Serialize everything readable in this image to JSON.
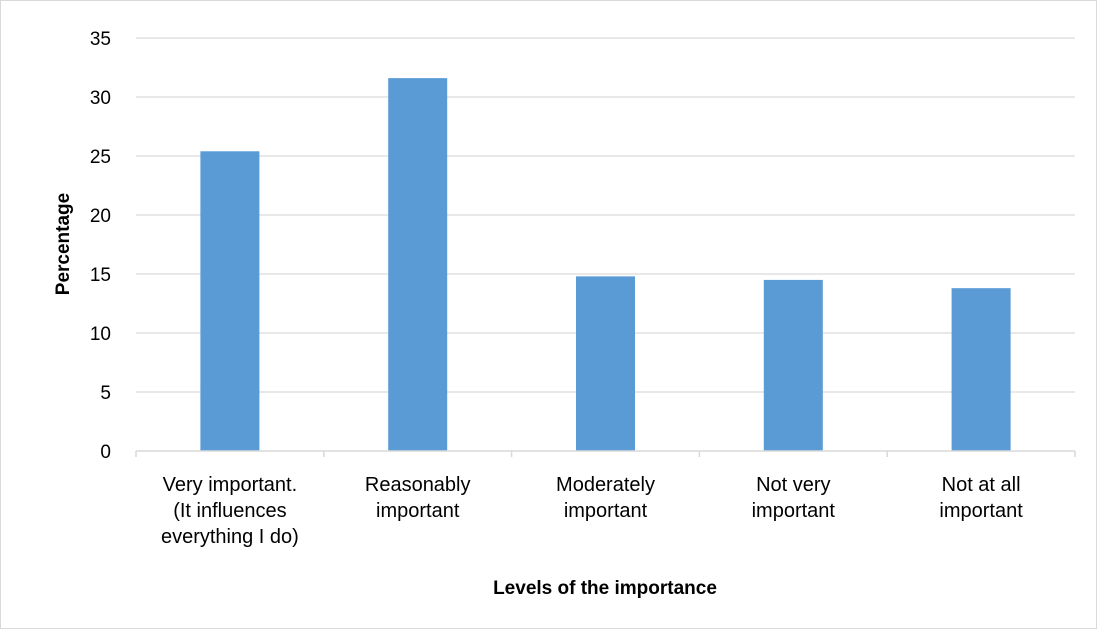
{
  "chart_data": {
    "type": "bar",
    "title": "",
    "xlabel": "Levels of the importance",
    "ylabel": "Percentage",
    "ylim": [
      0,
      35
    ],
    "ytick_step": 5,
    "grid": true,
    "legend": "none",
    "bar_color": "#5b9bd5",
    "grid_color": "#d9d9d9",
    "categories": [
      [
        "Very important.",
        "(It influences",
        "everything I do)"
      ],
      [
        "Reasonably",
        "important"
      ],
      [
        "Moderately",
        "important"
      ],
      [
        "Not very",
        "important"
      ],
      [
        "Not at all",
        "important"
      ]
    ],
    "values": [
      25.4,
      31.6,
      14.8,
      14.5,
      13.8
    ]
  }
}
